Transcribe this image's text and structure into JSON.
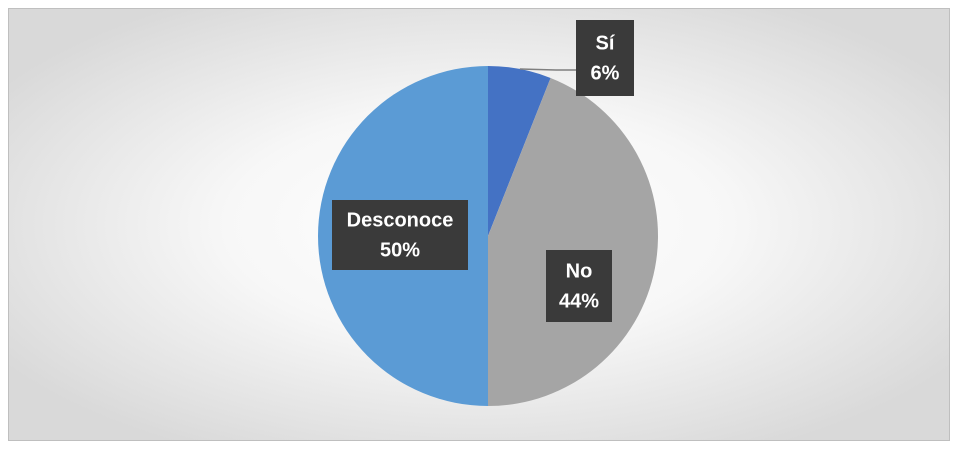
{
  "chart_data": {
    "type": "pie",
    "categories": [
      "Sí",
      "No",
      "Desconoce"
    ],
    "values": [
      6,
      44,
      50
    ],
    "value_labels": [
      "6%",
      "44%",
      "50%"
    ],
    "colors": [
      "#4472c4",
      "#a5a5a5",
      "#5b9bd5"
    ]
  }
}
